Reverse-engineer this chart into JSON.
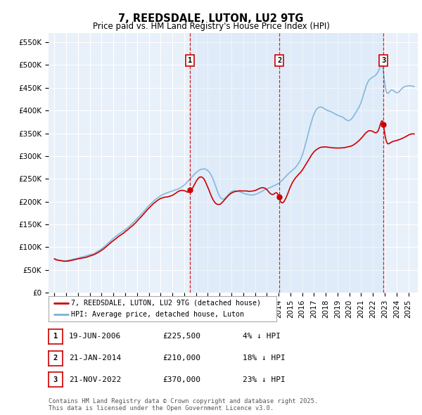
{
  "title": "7, REEDSDALE, LUTON, LU2 9TG",
  "subtitle": "Price paid vs. HM Land Registry's House Price Index (HPI)",
  "ylabel_ticks": [
    "£0",
    "£50K",
    "£100K",
    "£150K",
    "£200K",
    "£250K",
    "£300K",
    "£350K",
    "£400K",
    "£450K",
    "£500K",
    "£550K"
  ],
  "ylim": [
    0,
    570000
  ],
  "ytick_values": [
    0,
    50000,
    100000,
    150000,
    200000,
    250000,
    300000,
    350000,
    400000,
    450000,
    500000,
    550000
  ],
  "background_color": "#ffffff",
  "plot_bg_color": "#e8f0fa",
  "grid_color": "#ffffff",
  "hpi_color": "#7ab3d8",
  "price_color": "#cc0000",
  "shade_color": "#d0e4f5",
  "transactions": [
    {
      "num": 1,
      "date": "19-JUN-2006",
      "x_year": 2006.47,
      "price": 225500,
      "pct": "4%",
      "dir": "↓"
    },
    {
      "num": 2,
      "date": "21-JAN-2014",
      "x_year": 2014.06,
      "price": 210000,
      "pct": "18%",
      "dir": "↓"
    },
    {
      "num": 3,
      "date": "21-NOV-2022",
      "x_year": 2022.89,
      "price": 370000,
      "pct": "23%",
      "dir": "↓"
    }
  ],
  "legend_label1": "7, REEDSDALE, LUTON, LU2 9TG (detached house)",
  "legend_label2": "HPI: Average price, detached house, Luton",
  "footnote": "Contains HM Land Registry data © Crown copyright and database right 2025.\nThis data is licensed under the Open Government Licence v3.0.",
  "xlim_start": 1994.5,
  "xlim_end": 2025.8,
  "xtick_years": [
    1995,
    1996,
    1997,
    1998,
    1999,
    2000,
    2001,
    2002,
    2003,
    2004,
    2005,
    2006,
    2007,
    2008,
    2009,
    2010,
    2011,
    2012,
    2013,
    2014,
    2015,
    2016,
    2017,
    2018,
    2019,
    2020,
    2021,
    2022,
    2023,
    2024,
    2025
  ]
}
